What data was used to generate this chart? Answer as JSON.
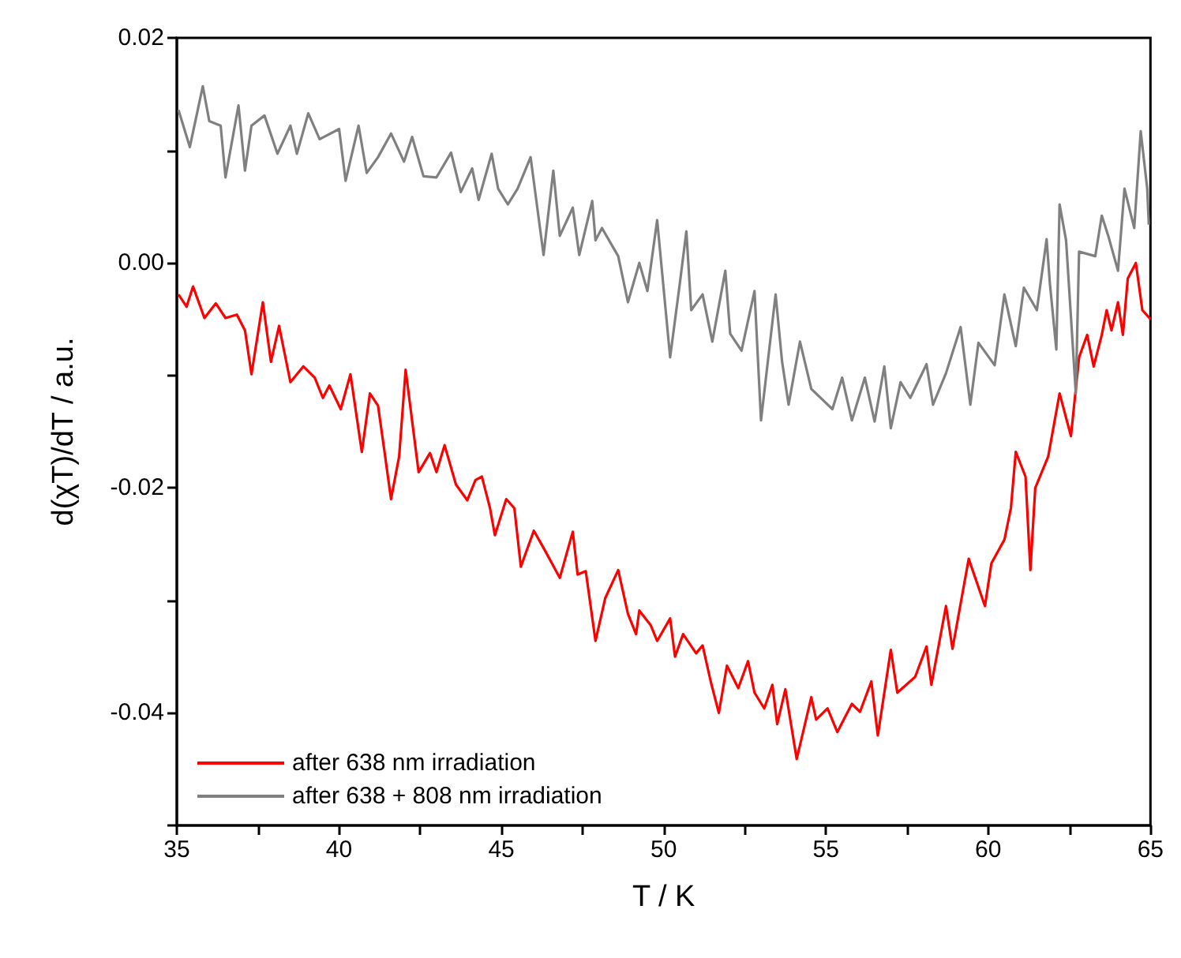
{
  "chart_data": {
    "type": "line",
    "xlabel": "T / K",
    "ylabel": "d(χT)/dT / a.u.",
    "xlim": [
      35,
      65
    ],
    "ylim": [
      -0.05,
      0.02
    ],
    "xticks": [
      35,
      {
        "value": 37.5,
        "label": null
      },
      40,
      {
        "value": 42.5,
        "label": null
      },
      45,
      {
        "value": 47.5,
        "label": null
      },
      50,
      {
        "value": 52.5,
        "label": null
      },
      55,
      {
        "value": 57.5,
        "label": null
      },
      60,
      {
        "value": 62.5,
        "label": null
      },
      65
    ],
    "yticks": [
      {
        "value": -0.05,
        "label": null
      },
      {
        "value": -0.04,
        "label": "-0.04"
      },
      {
        "value": -0.03,
        "label": null
      },
      {
        "value": -0.02,
        "label": "-0.02"
      },
      {
        "value": -0.01,
        "label": null
      },
      {
        "value": 0,
        "label": "0.00"
      },
      {
        "value": 0.01,
        "label": null
      },
      {
        "value": 0.02,
        "label": "0.02"
      }
    ],
    "grid": false,
    "legend": "bottom left",
    "marker": "none",
    "line_style": "solid",
    "series": [
      {
        "name": "after 638 nm irradiation",
        "color": "#ff0000",
        "x": [
          35.05,
          35.3,
          35.5,
          35.85,
          36.2,
          36.5,
          36.85,
          37.1,
          37.3,
          37.65,
          37.9,
          38.15,
          38.5,
          38.9,
          39.25,
          39.5,
          39.7,
          40.05,
          40.35,
          40.7,
          40.95,
          41.2,
          41.4,
          41.6,
          41.85,
          42.05,
          42.45,
          42.8,
          43.0,
          43.25,
          43.6,
          43.95,
          44.2,
          44.4,
          44.65,
          44.8,
          45.15,
          45.4,
          45.6,
          46.0,
          46.35,
          46.8,
          47.2,
          47.35,
          47.6,
          47.9,
          48.2,
          48.6,
          48.9,
          49.15,
          49.25,
          49.6,
          49.8,
          50.2,
          50.35,
          50.6,
          51.0,
          51.2,
          51.45,
          51.7,
          51.95,
          52.3,
          52.6,
          52.8,
          53.1,
          53.35,
          53.5,
          53.75,
          54.1,
          54.55,
          54.7,
          55.05,
          55.35,
          55.8,
          56.05,
          56.4,
          56.6,
          57.0,
          57.2,
          57.75,
          58.1,
          58.25,
          58.7,
          58.9,
          59.4,
          59.9,
          60.1,
          60.5,
          60.7,
          60.85,
          61.15,
          61.3,
          61.45,
          61.85,
          62.2,
          62.55,
          62.8,
          63.05,
          63.25,
          63.5,
          63.65,
          63.8,
          64.0,
          64.15,
          64.3,
          64.55,
          64.75,
          65.0
        ],
        "values": [
          -0.0028,
          -0.0039,
          -0.0021,
          -0.0049,
          -0.0036,
          -0.0049,
          -0.0046,
          -0.006,
          -0.0099,
          -0.0035,
          -0.0088,
          -0.0056,
          -0.0106,
          -0.0092,
          -0.0102,
          -0.012,
          -0.0109,
          -0.013,
          -0.0099,
          -0.0168,
          -0.0116,
          -0.0127,
          -0.0168,
          -0.021,
          -0.0172,
          -0.0095,
          -0.0186,
          -0.0169,
          -0.0186,
          -0.0162,
          -0.0197,
          -0.0211,
          -0.0193,
          -0.019,
          -0.0218,
          -0.0242,
          -0.021,
          -0.0218,
          -0.027,
          -0.0238,
          -0.0256,
          -0.028,
          -0.0239,
          -0.0277,
          -0.0274,
          -0.0336,
          -0.0298,
          -0.0273,
          -0.0312,
          -0.033,
          -0.0309,
          -0.0322,
          -0.0336,
          -0.0316,
          -0.035,
          -0.033,
          -0.0347,
          -0.034,
          -0.0372,
          -0.04,
          -0.0358,
          -0.0378,
          -0.0354,
          -0.0382,
          -0.0396,
          -0.0375,
          -0.041,
          -0.0379,
          -0.0441,
          -0.0386,
          -0.0406,
          -0.0396,
          -0.0417,
          -0.0392,
          -0.0399,
          -0.0372,
          -0.042,
          -0.0344,
          -0.0382,
          -0.0368,
          -0.0341,
          -0.0375,
          -0.0305,
          -0.0343,
          -0.0263,
          -0.0305,
          -0.0267,
          -0.0246,
          -0.0218,
          -0.0168,
          -0.019,
          -0.0273,
          -0.02,
          -0.0172,
          -0.0116,
          -0.0154,
          -0.0084,
          -0.0064,
          -0.0092,
          -0.0064,
          -0.0042,
          -0.006,
          -0.0035,
          -0.0064,
          -0.0014,
          0.0,
          -0.0042,
          -0.005
        ]
      },
      {
        "name": "after 638 + 808 nm irradiation",
        "color": "#808080",
        "x": [
          35.05,
          35.4,
          35.8,
          36.0,
          36.35,
          36.5,
          36.9,
          37.1,
          37.3,
          37.7,
          38.1,
          38.5,
          38.7,
          39.05,
          39.4,
          40.0,
          40.2,
          40.6,
          40.85,
          41.2,
          41.6,
          42.0,
          42.25,
          42.6,
          43.0,
          43.45,
          43.75,
          44.1,
          44.3,
          44.7,
          44.9,
          45.2,
          45.5,
          45.9,
          46.3,
          46.6,
          46.8,
          47.2,
          47.4,
          47.8,
          47.9,
          48.1,
          48.6,
          48.9,
          49.25,
          49.5,
          49.8,
          50.2,
          50.5,
          50.7,
          50.85,
          51.2,
          51.5,
          51.9,
          52.05,
          52.4,
          52.8,
          53.0,
          53.45,
          53.65,
          53.85,
          54.2,
          54.55,
          55.2,
          55.5,
          55.8,
          56.2,
          56.5,
          56.8,
          57.0,
          57.3,
          57.6,
          58.1,
          58.3,
          58.7,
          59.15,
          59.45,
          59.7,
          60.2,
          60.5,
          60.85,
          61.1,
          61.5,
          61.8,
          61.9,
          62.1,
          62.2,
          62.4,
          62.7,
          62.8,
          63.3,
          63.5,
          63.7,
          64.0,
          64.2,
          64.5,
          64.7,
          64.9,
          64.95
        ],
        "values": [
          0.0136,
          0.0103,
          0.0157,
          0.0126,
          0.0122,
          0.0076,
          0.014,
          0.0082,
          0.0122,
          0.0131,
          0.0097,
          0.0122,
          0.0097,
          0.0133,
          0.011,
          0.0119,
          0.0073,
          0.0122,
          0.008,
          0.0094,
          0.0115,
          0.009,
          0.0112,
          0.0077,
          0.0076,
          0.0098,
          0.0063,
          0.0084,
          0.0056,
          0.0097,
          0.0066,
          0.0052,
          0.0066,
          0.0094,
          0.0007,
          0.0082,
          0.0024,
          0.0049,
          0.0007,
          0.0055,
          0.002,
          0.0031,
          0.0006,
          -0.0035,
          0.0,
          -0.0025,
          0.0038,
          -0.0084,
          -0.0018,
          0.0028,
          -0.0042,
          -0.0028,
          -0.007,
          -0.0007,
          -0.0063,
          -0.0078,
          -0.0025,
          -0.014,
          -0.0028,
          -0.0088,
          -0.0126,
          -0.007,
          -0.0112,
          -0.013,
          -0.0102,
          -0.014,
          -0.0102,
          -0.0141,
          -0.0092,
          -0.0147,
          -0.0106,
          -0.012,
          -0.009,
          -0.0126,
          -0.0098,
          -0.0057,
          -0.0126,
          -0.0071,
          -0.0091,
          -0.0028,
          -0.0074,
          -0.0022,
          -0.0042,
          0.0021,
          -0.0018,
          -0.0077,
          0.0052,
          0.002,
          -0.0116,
          0.001,
          0.0006,
          0.0042,
          0.0024,
          -0.0007,
          0.0066,
          0.0031,
          0.0117,
          0.0066,
          0.0034
        ]
      }
    ]
  }
}
